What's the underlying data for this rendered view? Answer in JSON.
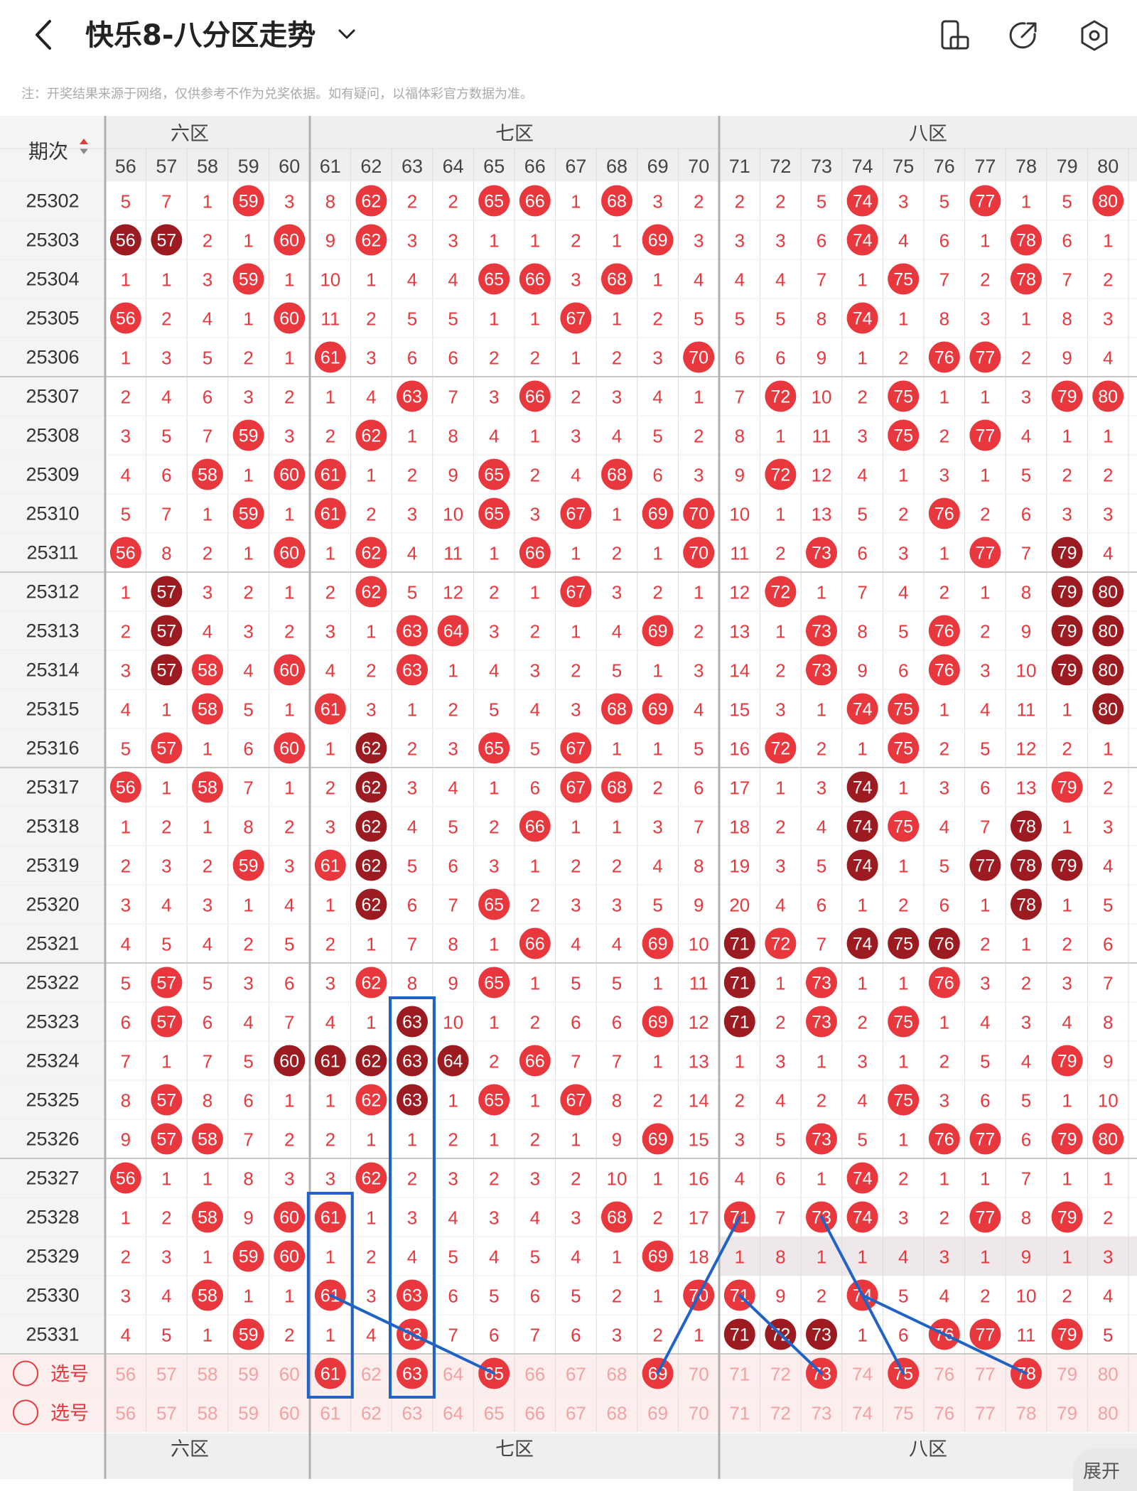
{
  "header": {
    "title": "快乐8-八分区走势",
    "back_icon": "chevron-left-icon",
    "dropdown_icon": "chevron-down-icon",
    "actions": [
      "screen-rotate-icon",
      "share-icon",
      "settings-icon"
    ]
  },
  "note": "注：开奖结果来源于网络，仅供参考不作为兑奖依据。如有疑问，以福体彩官方数据为准。",
  "table": {
    "period_header": "期次",
    "zones": [
      {
        "label": "六区",
        "visible_label": "六区"
      },
      {
        "label": "七区"
      },
      {
        "label": "八区"
      }
    ],
    "columns": [
      56,
      57,
      58,
      59,
      60,
      61,
      62,
      63,
      64,
      65,
      66,
      67,
      68,
      69,
      70,
      71,
      72,
      73,
      74,
      75,
      76,
      77,
      78,
      79,
      80
    ],
    "rows": [
      {
        "issue": "25302",
        "cells": [
          5,
          7,
          1,
          "H",
          3,
          8,
          "H",
          2,
          2,
          "H",
          "H",
          1,
          "H",
          3,
          2,
          2,
          2,
          5,
          "H",
          3,
          5,
          "H",
          1,
          5,
          "H"
        ]
      },
      {
        "issue": "25303",
        "cells": [
          "D",
          "D",
          2,
          1,
          "H",
          9,
          "H",
          3,
          3,
          1,
          1,
          2,
          1,
          "H",
          3,
          3,
          3,
          6,
          "H",
          4,
          6,
          1,
          "H",
          6,
          1
        ]
      },
      {
        "issue": "25304",
        "cells": [
          1,
          1,
          3,
          "H",
          1,
          10,
          1,
          4,
          4,
          "H",
          "H",
          3,
          "H",
          1,
          4,
          4,
          4,
          7,
          1,
          "H",
          7,
          2,
          "H",
          7,
          2
        ]
      },
      {
        "issue": "25305",
        "cells": [
          "H",
          2,
          4,
          1,
          "H",
          11,
          2,
          5,
          5,
          1,
          1,
          "H",
          1,
          2,
          5,
          5,
          5,
          8,
          "H",
          1,
          8,
          3,
          1,
          8,
          3
        ]
      },
      {
        "issue": "25306",
        "cells": [
          1,
          3,
          5,
          2,
          1,
          "H",
          3,
          6,
          6,
          2,
          2,
          1,
          2,
          3,
          "H",
          6,
          6,
          9,
          1,
          2,
          "H",
          "H",
          2,
          9,
          4
        ]
      },
      {
        "issue": "25307",
        "cells": [
          2,
          4,
          6,
          3,
          2,
          1,
          4,
          "H",
          7,
          3,
          "H",
          2,
          3,
          4,
          1,
          7,
          "H",
          10,
          2,
          "H",
          1,
          1,
          3,
          "H",
          "H"
        ]
      },
      {
        "issue": "25308",
        "cells": [
          3,
          5,
          7,
          "H",
          3,
          2,
          "H",
          1,
          8,
          4,
          1,
          3,
          4,
          5,
          2,
          8,
          1,
          11,
          3,
          "H",
          2,
          "H",
          4,
          1,
          1
        ]
      },
      {
        "issue": "25309",
        "cells": [
          4,
          6,
          "H",
          1,
          "H",
          "H",
          1,
          2,
          9,
          "H",
          2,
          4,
          "H",
          6,
          3,
          9,
          "H",
          12,
          4,
          1,
          3,
          1,
          5,
          2,
          2
        ]
      },
      {
        "issue": "25310",
        "cells": [
          5,
          7,
          1,
          "H",
          1,
          "H",
          2,
          3,
          10,
          "H",
          3,
          "H",
          1,
          "H",
          "H",
          10,
          1,
          13,
          5,
          2,
          "H",
          2,
          6,
          3,
          3
        ]
      },
      {
        "issue": "25311",
        "cells": [
          "H",
          8,
          2,
          1,
          "H",
          1,
          "H",
          4,
          11,
          1,
          "H",
          1,
          2,
          1,
          "H",
          11,
          2,
          "H",
          6,
          3,
          1,
          "H",
          7,
          "D",
          4
        ]
      },
      {
        "issue": "25312",
        "cells": [
          1,
          "D",
          3,
          2,
          1,
          2,
          "H",
          5,
          12,
          2,
          1,
          "H",
          3,
          2,
          1,
          12,
          "H",
          1,
          7,
          4,
          2,
          1,
          8,
          "D",
          "D"
        ]
      },
      {
        "issue": "25313",
        "cells": [
          2,
          "D",
          4,
          3,
          2,
          3,
          1,
          "H",
          "H",
          3,
          2,
          1,
          4,
          "H",
          2,
          13,
          1,
          "H",
          8,
          5,
          "H",
          2,
          9,
          "D",
          "D"
        ]
      },
      {
        "issue": "25314",
        "cells": [
          3,
          "D",
          "H",
          4,
          "H",
          4,
          2,
          "H",
          1,
          4,
          3,
          2,
          5,
          1,
          3,
          14,
          2,
          "H",
          9,
          6,
          "H",
          3,
          10,
          "D",
          "D"
        ]
      },
      {
        "issue": "25315",
        "cells": [
          4,
          1,
          "H",
          5,
          1,
          "H",
          3,
          1,
          2,
          5,
          4,
          3,
          "H",
          "H",
          4,
          15,
          3,
          1,
          "H",
          "H",
          1,
          4,
          11,
          1,
          "D"
        ]
      },
      {
        "issue": "25316",
        "cells": [
          5,
          "H",
          1,
          6,
          "H",
          1,
          "D",
          2,
          3,
          "H",
          5,
          "H",
          1,
          1,
          5,
          16,
          "H",
          2,
          1,
          "H",
          2,
          5,
          12,
          2,
          1
        ]
      },
      {
        "issue": "25317",
        "cells": [
          "H",
          1,
          "H",
          7,
          1,
          2,
          "D",
          3,
          4,
          1,
          6,
          "H",
          "H",
          2,
          6,
          17,
          1,
          3,
          "D",
          1,
          3,
          6,
          13,
          "H",
          2
        ]
      },
      {
        "issue": "25318",
        "cells": [
          1,
          2,
          1,
          8,
          2,
          3,
          "D",
          4,
          5,
          2,
          "H",
          1,
          1,
          3,
          7,
          18,
          2,
          4,
          "D",
          "H",
          4,
          7,
          "D",
          1,
          3
        ]
      },
      {
        "issue": "25319",
        "cells": [
          2,
          3,
          2,
          "H",
          3,
          "H",
          "D",
          5,
          6,
          3,
          1,
          2,
          2,
          4,
          8,
          19,
          3,
          5,
          "D",
          1,
          5,
          "D",
          "D",
          "D",
          4
        ]
      },
      {
        "issue": "25320",
        "cells": [
          3,
          4,
          3,
          1,
          4,
          1,
          "D",
          6,
          7,
          "H",
          2,
          3,
          3,
          5,
          9,
          20,
          4,
          6,
          1,
          2,
          6,
          1,
          "D",
          1,
          5
        ]
      },
      {
        "issue": "25321",
        "cells": [
          4,
          5,
          4,
          2,
          5,
          2,
          1,
          7,
          8,
          1,
          "H",
          4,
          4,
          "H",
          10,
          "D",
          "H",
          7,
          "D",
          "D",
          "D",
          2,
          1,
          2,
          6
        ]
      },
      {
        "issue": "25322",
        "cells": [
          5,
          "H",
          5,
          3,
          6,
          3,
          "H",
          8,
          9,
          "H",
          1,
          5,
          5,
          1,
          11,
          "D",
          1,
          "H",
          1,
          1,
          "H",
          3,
          2,
          3,
          7
        ]
      },
      {
        "issue": "25323",
        "cells": [
          6,
          "H",
          6,
          4,
          7,
          4,
          1,
          "D",
          10,
          1,
          2,
          6,
          6,
          "H",
          12,
          "D",
          2,
          "H",
          2,
          "H",
          1,
          4,
          3,
          4,
          8
        ]
      },
      {
        "issue": "25324",
        "cells": [
          7,
          1,
          7,
          5,
          "D",
          "D",
          "D",
          "D",
          "D",
          2,
          "H",
          7,
          7,
          1,
          13,
          1,
          3,
          1,
          3,
          1,
          2,
          5,
          4,
          "H",
          9
        ]
      },
      {
        "issue": "25325",
        "cells": [
          8,
          "H",
          8,
          6,
          1,
          1,
          "H",
          "D",
          1,
          "H",
          1,
          "H",
          8,
          2,
          14,
          2,
          4,
          2,
          4,
          "H",
          3,
          6,
          5,
          1,
          10
        ]
      },
      {
        "issue": "25326",
        "cells": [
          9,
          "H",
          "H",
          7,
          2,
          2,
          1,
          1,
          2,
          1,
          2,
          1,
          9,
          "H",
          15,
          3,
          5,
          "H",
          5,
          1,
          "H",
          "H",
          6,
          "H",
          "H"
        ]
      },
      {
        "issue": "25327",
        "cells": [
          "H",
          1,
          1,
          8,
          3,
          3,
          "H",
          2,
          3,
          2,
          3,
          2,
          10,
          1,
          16,
          4,
          6,
          1,
          "H",
          2,
          1,
          1,
          7,
          1,
          1
        ]
      },
      {
        "issue": "25328",
        "cells": [
          1,
          2,
          "H",
          9,
          "H",
          "H",
          1,
          3,
          4,
          3,
          4,
          3,
          "H",
          2,
          17,
          "H",
          7,
          "H",
          "H",
          3,
          2,
          "H",
          8,
          "H",
          2
        ]
      },
      {
        "issue": "25329",
        "cells": [
          2,
          3,
          1,
          "H",
          "H",
          1,
          2,
          4,
          5,
          4,
          5,
          4,
          1,
          "H",
          18,
          1,
          8,
          1,
          1,
          4,
          3,
          1,
          9,
          1,
          3
        ]
      },
      {
        "issue": "25330",
        "cells": [
          3,
          4,
          "H",
          1,
          1,
          "H",
          3,
          "H",
          6,
          5,
          6,
          5,
          2,
          1,
          "H",
          "H",
          9,
          2,
          "H",
          5,
          4,
          2,
          10,
          2,
          4
        ]
      },
      {
        "issue": "25331",
        "cells": [
          4,
          5,
          1,
          "H",
          2,
          1,
          4,
          "H",
          7,
          6,
          7,
          6,
          3,
          2,
          1,
          "D",
          "D",
          "D",
          1,
          6,
          "H",
          "H",
          11,
          "H",
          5
        ]
      }
    ],
    "select_rows": [
      {
        "label": "选号",
        "selected": [
          61,
          63,
          65,
          69,
          73,
          75,
          78
        ]
      },
      {
        "label": "选号",
        "selected": []
      }
    ],
    "drawn_marks": [
      [
        61,
        25328
      ],
      [
        61,
        25330
      ],
      [
        61,
        "select-1"
      ],
      [
        63,
        25323
      ],
      [
        63,
        25325
      ],
      [
        63,
        "select-1"
      ]
    ],
    "trend_lines": [
      [
        [
          61,
          25330
        ],
        [
          65,
          "select-1"
        ]
      ],
      [
        [
          69,
          "select-1"
        ],
        [
          71,
          25328
        ]
      ],
      [
        [
          71,
          25330
        ],
        [
          73,
          "select-1"
        ]
      ],
      [
        [
          73,
          25328
        ],
        [
          75,
          "select-1"
        ]
      ],
      [
        [
          74,
          25330
        ],
        [
          78,
          "select-1"
        ]
      ]
    ]
  },
  "colors": {
    "hit": "#e8383d",
    "dark_hit": "#9b1b20",
    "number": "#e8383d",
    "select_row_bg": "#fdeeee",
    "select_number": "#f3a2a4",
    "blue_mark": "#1f63c6",
    "header_bg": "#efefef",
    "highlight_row_bg": "#efe8ea"
  },
  "footer": {
    "expand_label": "展开"
  }
}
